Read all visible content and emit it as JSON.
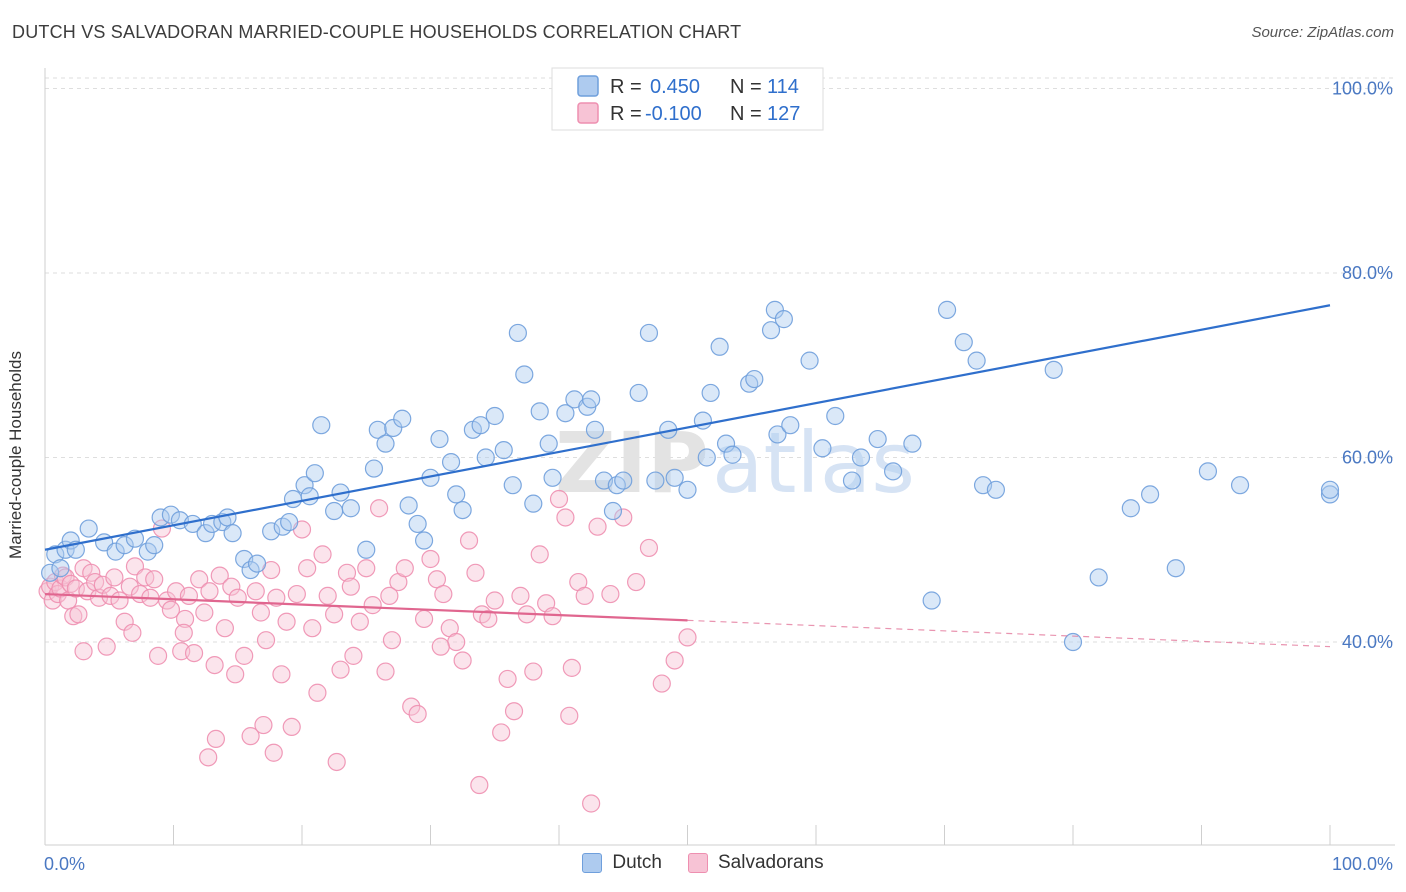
{
  "title": "DUTCH VS SALVADORAN MARRIED-COUPLE HOUSEHOLDS CORRELATION CHART",
  "source": "Source: ZipAtlas.com",
  "watermark": {
    "zip": "ZIP",
    "atlas": "atlas"
  },
  "colors": {
    "dutch": "#6f9fdc",
    "dutch_fill": "#aecbef",
    "dutch_line": "#2f6fcc",
    "salv": "#ee8fb0",
    "salv_fill": "#f7c3d5",
    "salv_line": "#e0668f",
    "tick": "#4a78c2"
  },
  "legend": [
    {
      "r_label": "R =",
      "r": "0.450",
      "n_label": "N =",
      "n": "114"
    },
    {
      "r_label": "R =",
      "r": "-0.100",
      "n_label": "N =",
      "n": "127"
    }
  ],
  "bottom_legend": [
    "Dutch",
    "Salvadorans"
  ],
  "chart_data": {
    "type": "scatter",
    "title": "DUTCH VS SALVADORAN MARRIED-COUPLE HOUSEHOLDS CORRELATION CHART",
    "xlabel": "",
    "ylabel": "Married-couple Households",
    "xlim": [
      0,
      100
    ],
    "ylim": [
      18,
      102
    ],
    "x_tick_labels": [
      "0.0%",
      "100.0%"
    ],
    "y_ticks": [
      40,
      60,
      80,
      100
    ],
    "y_tick_labels": [
      "40.0%",
      "60.0%",
      "80.0%",
      "100.0%"
    ],
    "grid": true,
    "legend_position": "top-center",
    "series": [
      {
        "name": "Dutch",
        "r": 0.45,
        "n": 114,
        "trend": {
          "x": [
            0,
            100
          ],
          "y": [
            50.0,
            76.5
          ],
          "dashed_from": null
        },
        "points": [
          [
            0.4,
            47.5
          ],
          [
            0.8,
            49.5
          ],
          [
            1.2,
            48.0
          ],
          [
            1.6,
            50.0
          ],
          [
            2.0,
            51.0
          ],
          [
            2.4,
            50.0
          ],
          [
            3.4,
            52.3
          ],
          [
            4.6,
            50.8
          ],
          [
            5.5,
            49.8
          ],
          [
            6.2,
            50.5
          ],
          [
            7.0,
            51.2
          ],
          [
            8.0,
            49.8
          ],
          [
            8.5,
            50.5
          ],
          [
            9.0,
            53.5
          ],
          [
            9.8,
            53.8
          ],
          [
            10.5,
            53.2
          ],
          [
            11.5,
            52.8
          ],
          [
            12.5,
            51.8
          ],
          [
            13.0,
            52.8
          ],
          [
            13.8,
            53.0
          ],
          [
            14.2,
            53.5
          ],
          [
            14.6,
            51.8
          ],
          [
            15.5,
            49.0
          ],
          [
            16.0,
            47.8
          ],
          [
            16.5,
            48.5
          ],
          [
            17.6,
            52.0
          ],
          [
            18.5,
            52.5
          ],
          [
            19.0,
            53.0
          ],
          [
            19.3,
            55.5
          ],
          [
            20.2,
            57.0
          ],
          [
            20.6,
            55.8
          ],
          [
            21.0,
            58.3
          ],
          [
            21.5,
            63.5
          ],
          [
            22.5,
            54.2
          ],
          [
            23.0,
            56.2
          ],
          [
            23.8,
            54.5
          ],
          [
            25.0,
            50.0
          ],
          [
            25.6,
            58.8
          ],
          [
            25.9,
            63.0
          ],
          [
            26.5,
            61.5
          ],
          [
            27.1,
            63.2
          ],
          [
            27.8,
            64.2
          ],
          [
            28.3,
            54.8
          ],
          [
            29.0,
            52.8
          ],
          [
            29.5,
            51.0
          ],
          [
            30.0,
            57.8
          ],
          [
            30.7,
            62.0
          ],
          [
            31.6,
            59.5
          ],
          [
            32.0,
            56.0
          ],
          [
            32.5,
            54.3
          ],
          [
            33.3,
            63.0
          ],
          [
            33.9,
            63.5
          ],
          [
            34.3,
            60.0
          ],
          [
            35.0,
            64.5
          ],
          [
            35.7,
            60.8
          ],
          [
            36.4,
            57.0
          ],
          [
            36.8,
            73.5
          ],
          [
            37.3,
            69.0
          ],
          [
            38.0,
            55.0
          ],
          [
            38.5,
            65.0
          ],
          [
            39.2,
            61.5
          ],
          [
            39.5,
            57.8
          ],
          [
            40.5,
            64.8
          ],
          [
            41.2,
            66.3
          ],
          [
            42.2,
            65.5
          ],
          [
            42.5,
            66.3
          ],
          [
            42.8,
            63.0
          ],
          [
            43.5,
            57.5
          ],
          [
            44.2,
            54.2
          ],
          [
            44.5,
            57.0
          ],
          [
            45.0,
            57.5
          ],
          [
            46.2,
            67.0
          ],
          [
            47.0,
            73.5
          ],
          [
            47.5,
            57.5
          ],
          [
            48.5,
            63.0
          ],
          [
            49.0,
            57.8
          ],
          [
            50.0,
            56.5
          ],
          [
            51.2,
            64.0
          ],
          [
            51.5,
            60.0
          ],
          [
            51.8,
            67.0
          ],
          [
            52.5,
            72.0
          ],
          [
            53.0,
            61.5
          ],
          [
            53.5,
            60.3
          ],
          [
            54.8,
            68.0
          ],
          [
            55.2,
            68.5
          ],
          [
            56.5,
            73.8
          ],
          [
            56.8,
            76.0
          ],
          [
            57.0,
            62.5
          ],
          [
            57.5,
            75.0
          ],
          [
            58.0,
            63.5
          ],
          [
            59.5,
            70.5
          ],
          [
            60.5,
            61.0
          ],
          [
            61.5,
            64.5
          ],
          [
            62.8,
            57.5
          ],
          [
            63.5,
            60.0
          ],
          [
            64.8,
            62.0
          ],
          [
            66.0,
            58.5
          ],
          [
            67.5,
            61.5
          ],
          [
            69.0,
            44.5
          ],
          [
            70.2,
            76.0
          ],
          [
            71.5,
            72.5
          ],
          [
            72.5,
            70.5
          ],
          [
            73.0,
            57.0
          ],
          [
            74.0,
            56.5
          ],
          [
            78.5,
            69.5
          ],
          [
            80.0,
            40.0
          ],
          [
            82.0,
            47.0
          ],
          [
            84.5,
            54.5
          ],
          [
            86.0,
            56.0
          ],
          [
            88.0,
            48.0
          ],
          [
            90.5,
            58.5
          ],
          [
            93.0,
            57.0
          ],
          [
            100.0,
            56.0
          ],
          [
            100.0,
            56.5
          ]
        ]
      },
      {
        "name": "Salvadorans",
        "r": -0.1,
        "n": 127,
        "trend": {
          "x": [
            0,
            100
          ],
          "y": [
            45.2,
            39.5
          ],
          "solid_until": 50
        },
        "points": [
          [
            0.2,
            45.5
          ],
          [
            0.4,
            46.0
          ],
          [
            0.6,
            44.5
          ],
          [
            0.8,
            46.5
          ],
          [
            1.0,
            45.2
          ],
          [
            1.2,
            45.8
          ],
          [
            1.4,
            47.2
          ],
          [
            1.6,
            47.0
          ],
          [
            1.8,
            44.5
          ],
          [
            2.0,
            46.3
          ],
          [
            2.2,
            42.8
          ],
          [
            2.4,
            45.8
          ],
          [
            2.6,
            43.0
          ],
          [
            3.0,
            48.0
          ],
          [
            3.3,
            45.5
          ],
          [
            3.6,
            47.5
          ],
          [
            3.9,
            46.5
          ],
          [
            4.2,
            44.8
          ],
          [
            4.5,
            46.2
          ],
          [
            4.8,
            39.5
          ],
          [
            5.1,
            45.0
          ],
          [
            5.4,
            47.0
          ],
          [
            5.8,
            44.5
          ],
          [
            6.2,
            42.2
          ],
          [
            6.6,
            46.0
          ],
          [
            7.0,
            48.2
          ],
          [
            7.4,
            45.2
          ],
          [
            7.8,
            47.0
          ],
          [
            8.2,
            44.8
          ],
          [
            8.5,
            46.8
          ],
          [
            8.8,
            38.5
          ],
          [
            9.1,
            52.3
          ],
          [
            9.5,
            44.5
          ],
          [
            9.8,
            43.5
          ],
          [
            10.2,
            45.5
          ],
          [
            10.6,
            39.0
          ],
          [
            10.9,
            42.5
          ],
          [
            11.2,
            45.0
          ],
          [
            11.6,
            38.8
          ],
          [
            12.0,
            46.8
          ],
          [
            12.4,
            43.2
          ],
          [
            12.8,
            45.5
          ],
          [
            13.2,
            37.5
          ],
          [
            13.6,
            47.2
          ],
          [
            14.0,
            41.5
          ],
          [
            14.5,
            46.0
          ],
          [
            15.0,
            44.8
          ],
          [
            15.5,
            38.5
          ],
          [
            16.0,
            29.8
          ],
          [
            16.4,
            45.5
          ],
          [
            16.8,
            43.2
          ],
          [
            17.2,
            40.2
          ],
          [
            17.6,
            47.8
          ],
          [
            18.0,
            44.8
          ],
          [
            18.4,
            36.5
          ],
          [
            18.8,
            42.2
          ],
          [
            19.2,
            30.8
          ],
          [
            19.6,
            45.2
          ],
          [
            20.0,
            52.2
          ],
          [
            20.4,
            48.0
          ],
          [
            20.8,
            41.5
          ],
          [
            21.2,
            34.5
          ],
          [
            21.6,
            49.5
          ],
          [
            22.0,
            45.0
          ],
          [
            22.5,
            43.0
          ],
          [
            23.0,
            37.0
          ],
          [
            23.5,
            47.5
          ],
          [
            24.0,
            38.5
          ],
          [
            24.5,
            42.2
          ],
          [
            25.0,
            48.0
          ],
          [
            25.5,
            44.0
          ],
          [
            26.0,
            54.5
          ],
          [
            26.5,
            36.8
          ],
          [
            27.0,
            40.2
          ],
          [
            27.5,
            46.5
          ],
          [
            28.0,
            48.0
          ],
          [
            28.5,
            33.0
          ],
          [
            29.0,
            32.2
          ],
          [
            29.5,
            42.5
          ],
          [
            30.0,
            49.0
          ],
          [
            30.5,
            46.8
          ],
          [
            31.0,
            45.2
          ],
          [
            31.5,
            41.5
          ],
          [
            32.0,
            40.0
          ],
          [
            32.5,
            38.0
          ],
          [
            33.0,
            51.0
          ],
          [
            33.5,
            47.5
          ],
          [
            34.0,
            43.0
          ],
          [
            34.5,
            42.5
          ],
          [
            35.0,
            44.5
          ],
          [
            35.5,
            30.2
          ],
          [
            36.0,
            36.0
          ],
          [
            36.5,
            32.5
          ],
          [
            37.0,
            45.0
          ],
          [
            37.5,
            43.0
          ],
          [
            38.0,
            36.8
          ],
          [
            38.5,
            49.5
          ],
          [
            39.0,
            44.2
          ],
          [
            39.5,
            42.8
          ],
          [
            40.0,
            55.5
          ],
          [
            40.5,
            53.5
          ],
          [
            41.0,
            37.2
          ],
          [
            41.5,
            46.5
          ],
          [
            42.0,
            45.0
          ],
          [
            43.0,
            52.5
          ],
          [
            44.0,
            45.2
          ],
          [
            45.0,
            53.5
          ],
          [
            46.0,
            46.5
          ],
          [
            47.0,
            50.2
          ],
          [
            48.0,
            35.5
          ],
          [
            49.0,
            38.0
          ],
          [
            50.0,
            40.5
          ],
          [
            42.5,
            22.5
          ],
          [
            17.0,
            31.0
          ],
          [
            13.3,
            29.5
          ],
          [
            12.7,
            27.5
          ],
          [
            22.7,
            27.0
          ],
          [
            17.8,
            28.0
          ],
          [
            40.8,
            32.0
          ],
          [
            33.8,
            24.5
          ],
          [
            30.8,
            39.5
          ],
          [
            10.8,
            41.0
          ],
          [
            6.8,
            41.0
          ],
          [
            23.8,
            46.0
          ],
          [
            26.8,
            45.0
          ],
          [
            14.8,
            36.5
          ],
          [
            3.0,
            39.0
          ]
        ]
      }
    ]
  }
}
